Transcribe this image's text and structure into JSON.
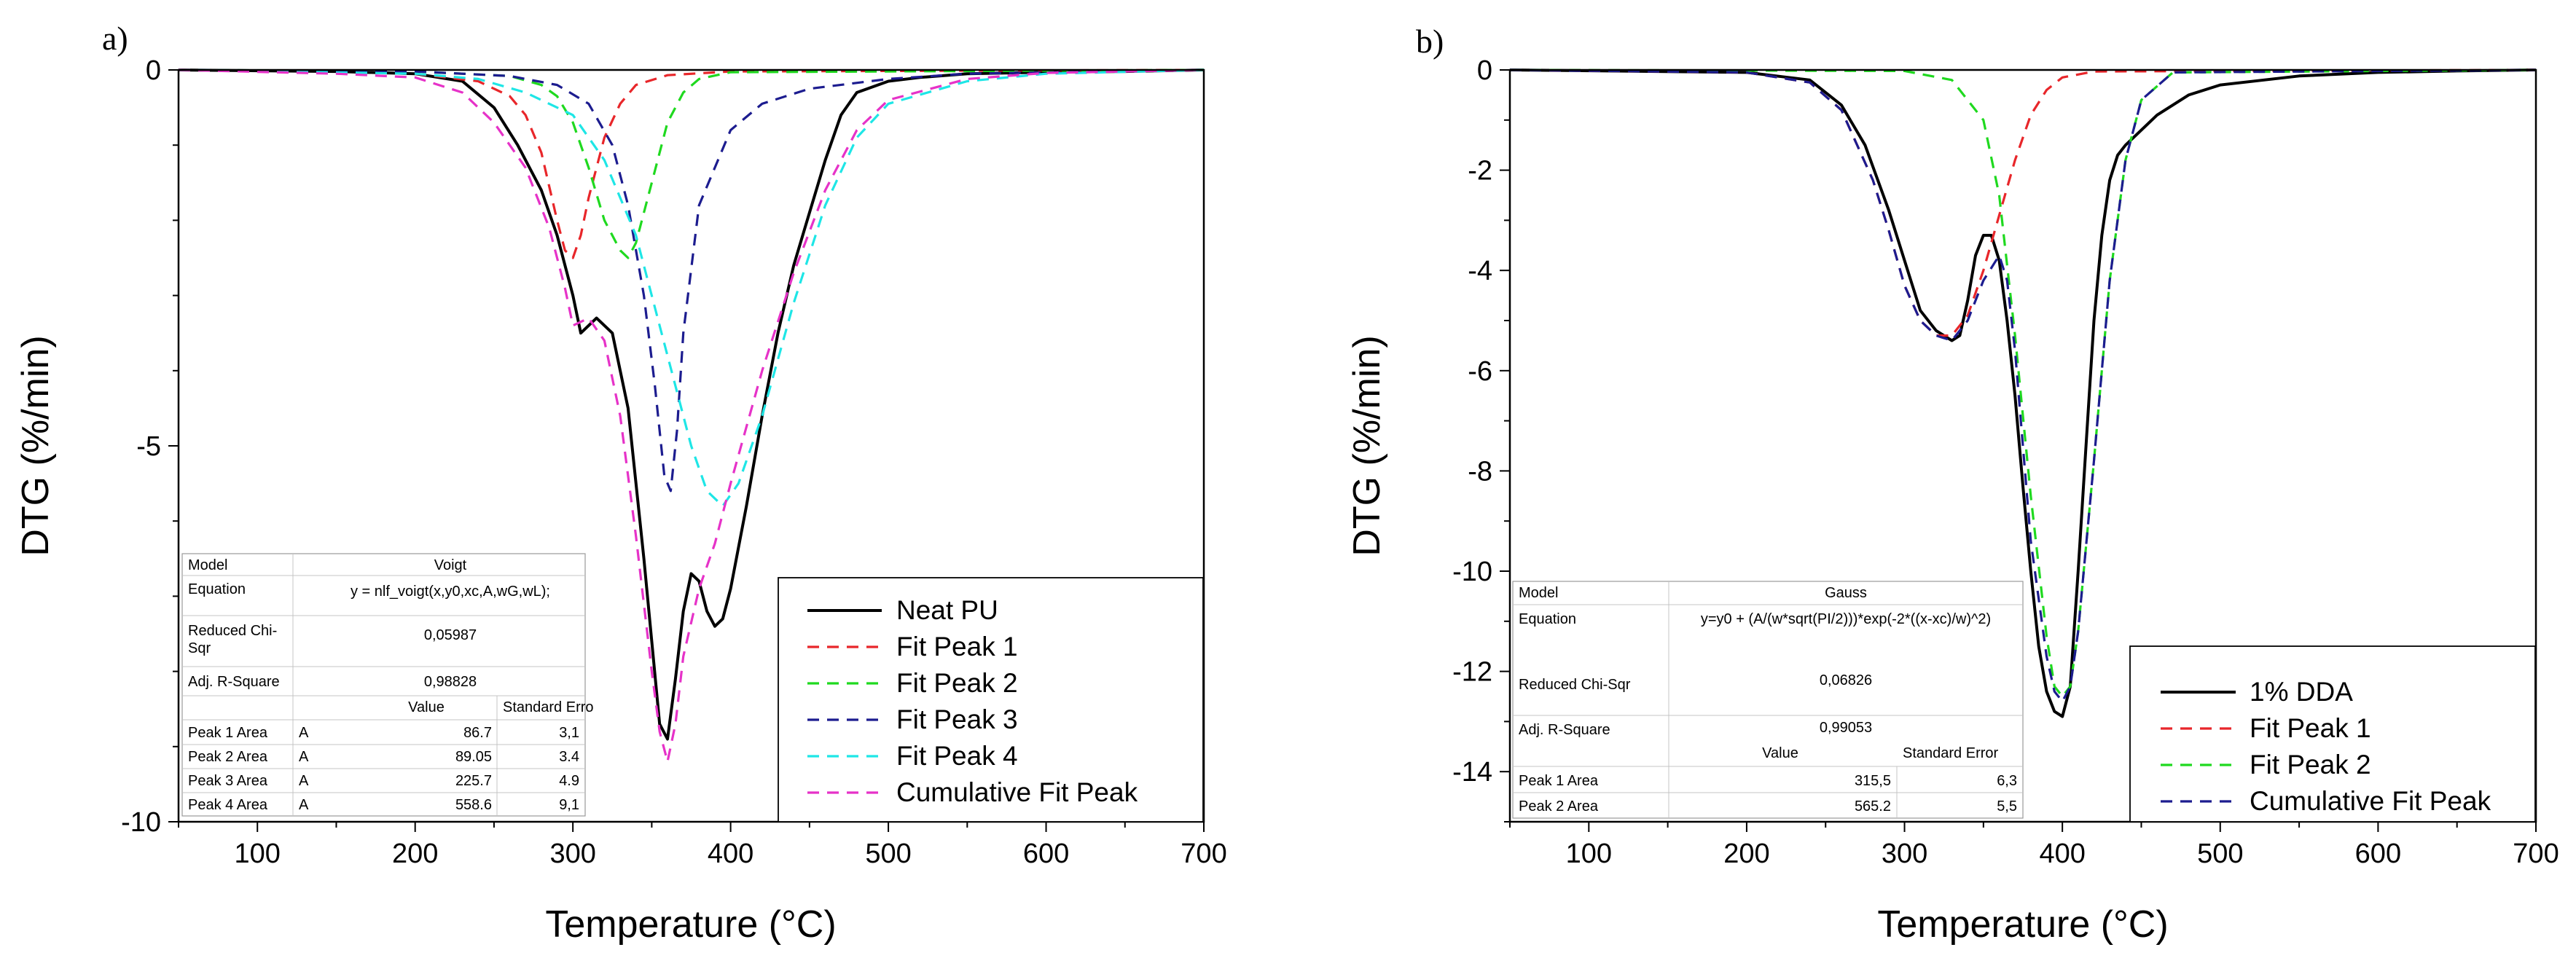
{
  "figure": {
    "panels": [
      {
        "label": "a)",
        "xlabel": "Temperature (°C)",
        "ylabel": "DTG (%/min)",
        "xlim": [
          50,
          700
        ],
        "ylim": [
          -10,
          0
        ],
        "xticks": [
          100,
          200,
          300,
          400,
          500,
          600,
          700
        ],
        "yticks": [
          0,
          -5,
          -10
        ],
        "ytick_labels": [
          "0",
          "-5",
          "-10"
        ],
        "legend": [
          {
            "label": "Neat PU",
            "color": "#000000",
            "dash": false
          },
          {
            "label": "Fit Peak 1",
            "color": "#e8262a",
            "dash": true
          },
          {
            "label": "Fit Peak 2",
            "color": "#1fd91f",
            "dash": true
          },
          {
            "label": "Fit Peak 3",
            "color": "#1c1c8f",
            "dash": true
          },
          {
            "label": "Fit Peak 4",
            "color": "#1ee6e6",
            "dash": true
          },
          {
            "label": "Cumulative Fit Peak",
            "color": "#e632c8",
            "dash": true
          }
        ],
        "fit_table": {
          "model_label": "Model",
          "model_value": "Voigt",
          "equation_label": "Equation",
          "equation_value": "y = nlf_voigt(x,y0,xc,A,wG,wL);",
          "chi_label_1": "Reduced Chi-",
          "chi_label_2": "Sqr",
          "chi_value": "0,05987",
          "r2_label": "Adj. R-Square",
          "r2_value": "0,98828",
          "value_header": "Value",
          "error_header": "Standard Erro",
          "rows": [
            {
              "name": "Peak 1 Area",
              "param": "A",
              "value": "86.7",
              "error": "3,1"
            },
            {
              "name": "Peak 2 Area",
              "param": "A",
              "value": "89.05",
              "error": "3.4"
            },
            {
              "name": "Peak 3 Area",
              "param": "A",
              "value": "225.7",
              "error": "4.9"
            },
            {
              "name": "Peak 4 Area",
              "param": "A",
              "value": "558.6",
              "error": "9,1"
            }
          ]
        }
      },
      {
        "label": "b)",
        "xlabel": "Temperature (°C)",
        "ylabel": "DTG (%/min)",
        "xlim": [
          50,
          700
        ],
        "ylim": [
          -15,
          0
        ],
        "xticks": [
          100,
          200,
          300,
          400,
          500,
          600,
          700
        ],
        "yticks": [
          0,
          -2,
          -4,
          -6,
          -8,
          -10,
          -12,
          -14
        ],
        "ytick_labels": [
          "0",
          "-2",
          "-4",
          "-6",
          "-8",
          "-10",
          "-12",
          "-14"
        ],
        "legend": [
          {
            "label": "1% DDA",
            "color": "#000000",
            "dash": false
          },
          {
            "label": "Fit Peak 1",
            "color": "#e8262a",
            "dash": true
          },
          {
            "label": "Fit Peak 2",
            "color": "#1fd91f",
            "dash": true
          },
          {
            "label": "Cumulative Fit Peak",
            "color": "#1c1c8f",
            "dash": true
          }
        ],
        "fit_table": {
          "model_label": "Model",
          "model_value": "Gauss",
          "equation_label": "Equation",
          "equation_value": "y=y0 + (A/(w*sqrt(PI/2)))*exp(-2*((x-xc)/w)^2)",
          "chi_label": "Reduced Chi-Sqr",
          "chi_value": "0,06826",
          "r2_label": "Adj. R-Square",
          "r2_value": "0,99053",
          "value_header": "Value",
          "error_header": "Standard Error",
          "rows": [
            {
              "name": "Peak 1 Area",
              "value": "315,5",
              "error": "6,3"
            },
            {
              "name": "Peak 2 Area",
              "value": "565.2",
              "error": "5,5"
            }
          ]
        }
      }
    ]
  },
  "chart_data": [
    {
      "type": "line",
      "title": "",
      "xlabel": "Temperature (°C)",
      "ylabel": "DTG (%/min)",
      "xlim": [
        50,
        700
      ],
      "ylim": [
        -10,
        0
      ],
      "grid": false,
      "legend_position": "bottom-right",
      "series": [
        {
          "name": "Neat PU",
          "color": "#000000",
          "x": [
            50,
            150,
            200,
            230,
            250,
            265,
            280,
            290,
            300,
            305,
            315,
            325,
            335,
            345,
            355,
            360,
            365,
            370,
            375,
            380,
            385,
            390,
            395,
            400,
            410,
            420,
            430,
            440,
            450,
            460,
            470,
            480,
            500,
            520,
            550,
            600,
            650,
            700
          ],
          "y": [
            0,
            -0.02,
            -0.05,
            -0.15,
            -0.5,
            -1.0,
            -1.6,
            -2.2,
            -3.0,
            -3.5,
            -3.3,
            -3.5,
            -4.5,
            -6.5,
            -8.7,
            -8.9,
            -8.1,
            -7.2,
            -6.7,
            -6.8,
            -7.2,
            -7.4,
            -7.3,
            -6.9,
            -5.8,
            -4.6,
            -3.5,
            -2.6,
            -1.9,
            -1.2,
            -0.6,
            -0.3,
            -0.15,
            -0.1,
            -0.05,
            -0.03,
            -0.02,
            0
          ]
        },
        {
          "name": "Fit Peak 1",
          "color": "#e8262a",
          "x": [
            50,
            200,
            240,
            260,
            270,
            280,
            290,
            295,
            300,
            305,
            310,
            320,
            330,
            340,
            360,
            400,
            700
          ],
          "y": [
            0,
            -0.05,
            -0.15,
            -0.35,
            -0.6,
            -1.1,
            -2.0,
            -2.4,
            -2.5,
            -2.2,
            -1.7,
            -0.9,
            -0.45,
            -0.2,
            -0.07,
            -0.02,
            0
          ]
        },
        {
          "name": "Fit Peak 2",
          "color": "#1fd91f",
          "x": [
            50,
            200,
            260,
            280,
            290,
            300,
            310,
            320,
            330,
            335,
            340,
            350,
            360,
            370,
            380,
            400,
            700
          ],
          "y": [
            0,
            -0.02,
            -0.08,
            -0.2,
            -0.35,
            -0.7,
            -1.3,
            -2.0,
            -2.4,
            -2.5,
            -2.3,
            -1.5,
            -0.7,
            -0.3,
            -0.12,
            -0.03,
            0
          ]
        },
        {
          "name": "Fit Peak 3",
          "color": "#1c1c8f",
          "x": [
            50,
            200,
            260,
            290,
            310,
            325,
            335,
            345,
            352,
            358,
            362,
            366,
            370,
            380,
            400,
            420,
            450,
            500,
            550,
            700
          ],
          "y": [
            0,
            -0.02,
            -0.08,
            -0.2,
            -0.45,
            -1.0,
            -1.8,
            -3.0,
            -4.2,
            -5.4,
            -5.6,
            -4.8,
            -3.5,
            -1.8,
            -0.8,
            -0.45,
            -0.25,
            -0.12,
            -0.05,
            0
          ]
        },
        {
          "name": "Fit Peak 4",
          "color": "#1ee6e6",
          "x": [
            50,
            200,
            240,
            270,
            300,
            320,
            340,
            360,
            375,
            385,
            395,
            405,
            420,
            440,
            460,
            480,
            500,
            550,
            600,
            700
          ],
          "y": [
            0,
            -0.05,
            -0.12,
            -0.3,
            -0.6,
            -1.2,
            -2.2,
            -3.8,
            -5.0,
            -5.6,
            -5.8,
            -5.5,
            -4.6,
            -3.1,
            -1.8,
            -0.9,
            -0.45,
            -0.15,
            -0.05,
            0
          ]
        },
        {
          "name": "Cumulative Fit Peak",
          "color": "#e632c8",
          "x": [
            50,
            150,
            200,
            230,
            250,
            270,
            285,
            295,
            300,
            310,
            320,
            330,
            340,
            350,
            355,
            360,
            365,
            370,
            380,
            390,
            400,
            420,
            440,
            460,
            480,
            500,
            550,
            600,
            700
          ],
          "y": [
            0,
            -0.05,
            -0.1,
            -0.3,
            -0.7,
            -1.3,
            -2.1,
            -2.9,
            -3.4,
            -3.3,
            -3.6,
            -4.6,
            -6.2,
            -8.0,
            -8.8,
            -9.2,
            -8.7,
            -7.8,
            -6.9,
            -6.3,
            -5.5,
            -4.0,
            -2.7,
            -1.6,
            -0.8,
            -0.4,
            -0.12,
            -0.04,
            0
          ]
        }
      ],
      "annotations": [
        "a)"
      ]
    },
    {
      "type": "line",
      "title": "",
      "xlabel": "Temperature (°C)",
      "ylabel": "DTG (%/min)",
      "xlim": [
        50,
        700
      ],
      "ylim": [
        -15,
        0
      ],
      "grid": false,
      "legend_position": "bottom-right",
      "series": [
        {
          "name": "1% DDA",
          "color": "#000000",
          "x": [
            50,
            200,
            240,
            260,
            275,
            290,
            300,
            310,
            320,
            330,
            335,
            340,
            345,
            350,
            355,
            360,
            365,
            370,
            375,
            380,
            385,
            390,
            395,
            400,
            405,
            410,
            415,
            420,
            425,
            430,
            435,
            440,
            450,
            460,
            480,
            500,
            550,
            600,
            650,
            700
          ],
          "y": [
            0,
            -0.05,
            -0.2,
            -0.7,
            -1.5,
            -2.8,
            -3.8,
            -4.8,
            -5.2,
            -5.4,
            -5.3,
            -4.6,
            -3.7,
            -3.3,
            -3.3,
            -3.8,
            -5.0,
            -6.5,
            -8.3,
            -10.0,
            -11.5,
            -12.4,
            -12.8,
            -12.9,
            -12.3,
            -10.0,
            -7.5,
            -5.0,
            -3.3,
            -2.2,
            -1.7,
            -1.5,
            -1.2,
            -0.9,
            -0.5,
            -0.3,
            -0.12,
            -0.05,
            -0.02,
            0
          ]
        },
        {
          "name": "Fit Peak 1",
          "color": "#e8262a",
          "x": [
            50,
            200,
            240,
            260,
            280,
            290,
            300,
            310,
            320,
            330,
            340,
            350,
            360,
            370,
            380,
            390,
            400,
            420,
            700
          ],
          "y": [
            0,
            -0.05,
            -0.25,
            -0.8,
            -2.2,
            -3.2,
            -4.3,
            -5.0,
            -5.3,
            -5.3,
            -4.9,
            -4.0,
            -2.9,
            -1.8,
            -0.9,
            -0.4,
            -0.15,
            -0.03,
            0
          ]
        },
        {
          "name": "Fit Peak 2",
          "color": "#1fd91f",
          "x": [
            50,
            300,
            330,
            350,
            360,
            370,
            380,
            390,
            395,
            400,
            405,
            410,
            420,
            430,
            440,
            450,
            470,
            700
          ],
          "y": [
            0,
            -0.02,
            -0.2,
            -1.0,
            -2.5,
            -5.3,
            -8.5,
            -11.3,
            -12.3,
            -12.5,
            -12.3,
            -11.2,
            -7.8,
            -4.2,
            -1.8,
            -0.6,
            -0.05,
            0
          ]
        },
        {
          "name": "Cumulative Fit Peak",
          "color": "#1c1c8f",
          "x": [
            50,
            200,
            240,
            260,
            280,
            290,
            300,
            310,
            320,
            330,
            340,
            350,
            360,
            365,
            370,
            380,
            390,
            395,
            400,
            405,
            410,
            420,
            430,
            440,
            450,
            470,
            700
          ],
          "y": [
            0,
            -0.05,
            -0.25,
            -0.8,
            -2.2,
            -3.2,
            -4.3,
            -5.0,
            -5.3,
            -5.4,
            -5.0,
            -4.2,
            -3.7,
            -4.2,
            -5.6,
            -9.4,
            -11.7,
            -12.4,
            -12.6,
            -12.3,
            -11.2,
            -7.8,
            -4.2,
            -1.8,
            -0.6,
            -0.05,
            0
          ]
        }
      ],
      "annotations": [
        "b)"
      ]
    }
  ]
}
